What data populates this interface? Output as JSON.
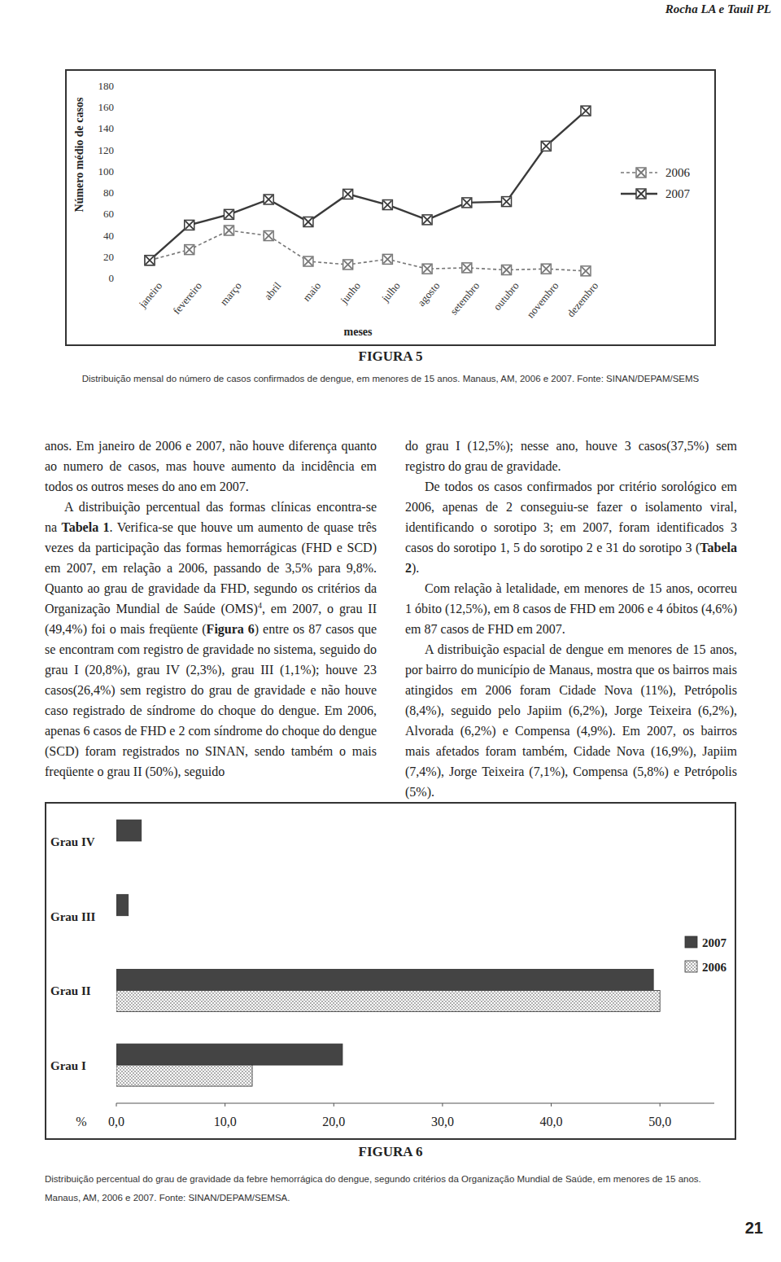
{
  "header": {
    "authors": "Rocha LA e Tauil PL"
  },
  "chart_data": [
    {
      "type": "line",
      "x_label": "meses",
      "y_label": "Número médio de casos",
      "categories": [
        "janeiro",
        "fevereiro",
        "março",
        "abril",
        "maio",
        "junho",
        "julho",
        "agosto",
        "setembro",
        "outubro",
        "novembro",
        "dezembro"
      ],
      "series": [
        {
          "name": "2006",
          "color": "#777777",
          "line_style": "dashed",
          "marker": "square-x",
          "values": [
            17,
            27,
            45,
            40,
            16,
            13,
            18,
            9,
            10,
            8,
            9,
            7
          ]
        },
        {
          "name": "2007",
          "color": "#3a3a3a",
          "line_style": "solid",
          "marker": "square-x",
          "values": [
            17,
            50,
            60,
            74,
            53,
            79,
            69,
            55,
            71,
            72,
            124,
            157
          ]
        }
      ],
      "ylim": [
        0,
        180
      ],
      "yticks": [
        0,
        20,
        40,
        60,
        80,
        100,
        120,
        140,
        160,
        180
      ],
      "legend": "right"
    },
    {
      "type": "bar",
      "orientation": "horizontal",
      "x_label": "%",
      "categories": [
        "Grau IV",
        "Grau III",
        "Grau II",
        "Grau I"
      ],
      "series": [
        {
          "name": "2007",
          "color": "#444444",
          "values": [
            2.3,
            1.1,
            49.4,
            20.8
          ]
        },
        {
          "name": "2006",
          "color": "#8a8a8a",
          "values": [
            0,
            0,
            50,
            12.5
          ]
        }
      ],
      "xlim": [
        0,
        55
      ],
      "xticks": [
        {
          "value": 0,
          "label": "0,0"
        },
        {
          "value": 10,
          "label": "10,0"
        },
        {
          "value": 20,
          "label": "20,0"
        },
        {
          "value": 30,
          "label": "30,0"
        },
        {
          "value": 40,
          "label": "40,0"
        },
        {
          "value": 50,
          "label": "50,0"
        }
      ],
      "legend": "right"
    }
  ],
  "captions": [
    {
      "label": "FIGURA 5",
      "text": "Distribuição mensal do número de casos confirmados de dengue, em menores de 15 anos. Manaus, AM, 2006 e 2007. Fonte: SINAN/DEPAM/SEMS"
    },
    {
      "label": "FIGURA 6",
      "text": "Distribuição percentual do grau de gravidade da febre hemorrágica do dengue, segundo critérios da Organização Mundial de Saúde, em menores de 15 anos. Manaus, AM, 2006 e 2007. Fonte: SINAN/DEPAM/SEMSA."
    }
  ],
  "columns": [
    [
      [
        {
          "text": "anos. Em janeiro de 2006 e 2007, não houve diferença quanto ao numero de casos, mas houve aumento da incidência em todos os outros meses do ano em 2007."
        }
      ],
      [
        {
          "text": "A distribuição percentual das formas clínicas encontra-se na "
        },
        {
          "text": "Tabela 1",
          "format": "bold"
        },
        {
          "text": ". Verifica-se que houve um aumento de quase três vezes da participação das formas hemorrágicas (FHD e SCD) em 2007, em relação a 2006, passando de 3,5% para 9,8%. Quanto ao grau de gravidade da FHD, segundo os critérios da Organização Mundial de Saúde (OMS)"
        },
        {
          "text": "4",
          "format": "sup"
        },
        {
          "text": ", em 2007, o grau II (49,4%) foi o mais freqüente ("
        },
        {
          "text": "Figura 6",
          "format": "bold"
        },
        {
          "text": ") entre os 87 casos que se encontram com registro de gravidade no sistema, seguido do grau I (20,8%), grau IV (2,3%), grau III (1,1%); houve 23 casos(26,4%) sem registro do grau de gravidade e não houve caso registrado de síndrome do choque do dengue. Em 2006, apenas 6 casos de FHD e 2 com síndrome do choque do dengue (SCD) foram registrados no SINAN, sendo também o mais freqüente o grau II (50%), seguido"
        }
      ]
    ],
    [
      [
        {
          "text": "do grau I (12,5%); nesse ano, houve 3 casos(37,5%) sem registro do grau de gravidade."
        }
      ],
      [
        {
          "text": "De todos os casos confirmados por critério sorológico em 2006, apenas de 2 conseguiu-se fazer o isolamento viral, identificando o sorotipo 3; em 2007, foram identificados 3 casos do sorotipo 1, 5 do sorotipo 2 e 31 do sorotipo 3 ("
        },
        {
          "text": "Tabela 2",
          "format": "bold"
        },
        {
          "text": ")."
        }
      ],
      [
        {
          "text": "Com relação à letalidade, em menores de 15 anos, ocorreu 1 óbito (12,5%), em 8 casos de FHD em 2006 e 4 óbitos (4,6%) em 87 casos de FHD em 2007."
        }
      ],
      [
        {
          "text": "A distribuição espacial de dengue em menores de 15 anos, por bairro do município de Manaus, mostra que os bairros mais atingidos em 2006 foram Cidade Nova (11%), Petrópolis (8,4%), seguido pelo Japiim (6,2%), Jorge Teixeira (6,2%), Alvorada (6,2%) e Compensa (4,9%). Em 2007, os bairros mais afetados foram também, Cidade Nova (16,9%), Japiim (7,4%), Jorge Teixeira (7,1%), Compensa (5,8%) e Petrópolis (5%)."
        }
      ]
    ]
  ],
  "page_number": 21
}
